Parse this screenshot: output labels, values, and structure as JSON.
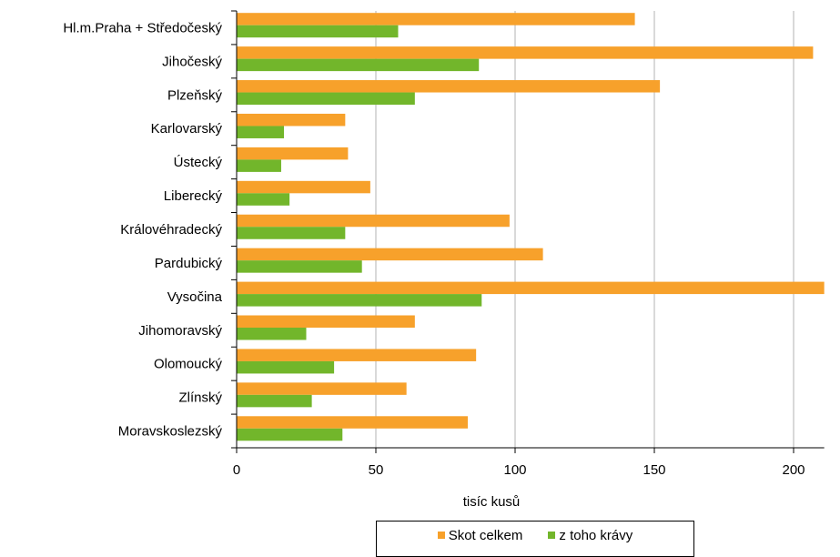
{
  "chart_data": {
    "type": "bar",
    "orientation": "horizontal",
    "categories": [
      "Hl.m.Praha + Středočeský",
      "Jihočeský",
      "Plzeňský",
      "Karlovarský",
      "Ústecký",
      "Liberecký",
      "Královéhradecký",
      "Pardubický",
      "Vysočina",
      "Jihomoravský",
      "Olomoucký",
      "Zlínský",
      "Moravskoslezský"
    ],
    "series": [
      {
        "name": "Skot celkem",
        "color": "#f7a12b",
        "values": [
          143,
          207,
          152,
          39,
          40,
          48,
          98,
          110,
          211,
          64,
          86,
          61,
          83
        ]
      },
      {
        "name": "z toho krávy",
        "color": "#72b62b",
        "values": [
          58,
          87,
          64,
          17,
          16,
          19,
          39,
          45,
          88,
          25,
          35,
          27,
          38
        ]
      }
    ],
    "xlabel": "tisíc kusů",
    "xlim": [
      0,
      211
    ],
    "xticks": [
      0,
      50,
      100,
      150,
      200
    ],
    "grid": "vertical",
    "legend_position": "bottom"
  }
}
